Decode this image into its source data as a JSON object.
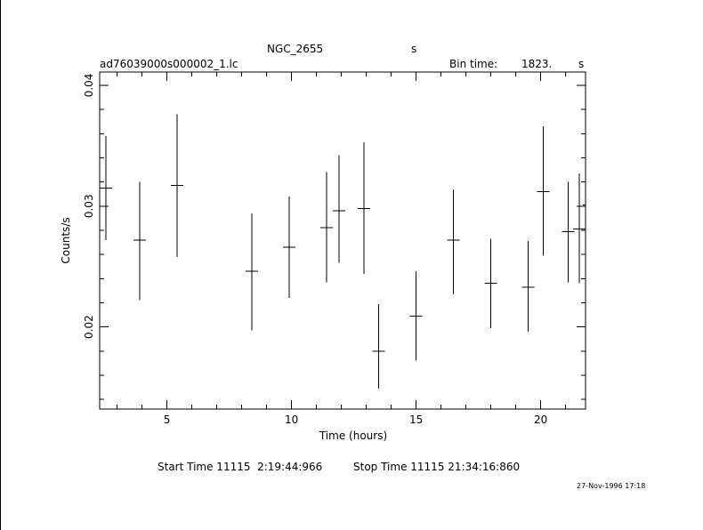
{
  "header": {
    "object": "NGC_2655",
    "object_unit": "s",
    "filename": "ad76039000s000002_1.lc",
    "bin_label": "Bin time:",
    "bin_value": "1823.",
    "bin_unit": "s"
  },
  "footer": {
    "start_label": "Start Time 11115  2:19:44:966",
    "stop_label": "Stop Time 11115 21:34:16:860",
    "date": "27-Nov-1996 17:18"
  },
  "chart_data": {
    "type": "scatter",
    "title": "NGC_2655",
    "xlabel": "Time (hours)",
    "ylabel": "Counts/s",
    "xlim": [
      2.3,
      21.8
    ],
    "ylim": [
      0.0132,
      0.0411
    ],
    "xticks": [
      5,
      10,
      15,
      20
    ],
    "xtick_labels": [
      "5",
      "10",
      "15",
      "20"
    ],
    "yticks": [
      0.02,
      0.03,
      0.04
    ],
    "ytick_labels": [
      "0.02",
      "0.03",
      "0.04"
    ],
    "grid": false,
    "points": [
      {
        "x": 2.55,
        "y": 0.0315,
        "xerr": 0.25,
        "ylo": 0.0272,
        "yhi": 0.0358
      },
      {
        "x": 3.9,
        "y": 0.0272,
        "xerr": 0.25,
        "ylo": 0.0222,
        "yhi": 0.032
      },
      {
        "x": 5.4,
        "y": 0.0317,
        "xerr": 0.25,
        "ylo": 0.0258,
        "yhi": 0.0376
      },
      {
        "x": 8.4,
        "y": 0.0246,
        "xerr": 0.25,
        "ylo": 0.0197,
        "yhi": 0.0294
      },
      {
        "x": 9.9,
        "y": 0.0266,
        "xerr": 0.25,
        "ylo": 0.0224,
        "yhi": 0.0308
      },
      {
        "x": 11.4,
        "y": 0.0282,
        "xerr": 0.25,
        "ylo": 0.0237,
        "yhi": 0.0328
      },
      {
        "x": 11.9,
        "y": 0.0296,
        "xerr": 0.25,
        "ylo": 0.0253,
        "yhi": 0.0342
      },
      {
        "x": 12.9,
        "y": 0.0298,
        "xerr": 0.25,
        "ylo": 0.0244,
        "yhi": 0.0353
      },
      {
        "x": 13.5,
        "y": 0.018,
        "xerr": 0.25,
        "ylo": 0.0149,
        "yhi": 0.0219
      },
      {
        "x": 15.0,
        "y": 0.0209,
        "xerr": 0.25,
        "ylo": 0.0172,
        "yhi": 0.0246
      },
      {
        "x": 16.5,
        "y": 0.0272,
        "xerr": 0.25,
        "ylo": 0.0227,
        "yhi": 0.0314
      },
      {
        "x": 18.0,
        "y": 0.0236,
        "xerr": 0.25,
        "ylo": 0.0199,
        "yhi": 0.0273
      },
      {
        "x": 19.5,
        "y": 0.0233,
        "xerr": 0.25,
        "ylo": 0.0196,
        "yhi": 0.0271
      },
      {
        "x": 20.1,
        "y": 0.0312,
        "xerr": 0.25,
        "ylo": 0.0259,
        "yhi": 0.0366
      },
      {
        "x": 21.1,
        "y": 0.0279,
        "xerr": 0.25,
        "ylo": 0.0237,
        "yhi": 0.032
      },
      {
        "x": 21.55,
        "y": 0.0281,
        "xerr": 0.25,
        "ylo": 0.0236,
        "yhi": 0.0327
      },
      {
        "x": 21.8,
        "y": 0.0301,
        "xerr": 0.1,
        "ylo": 0.025,
        "yhi": 0.0345
      }
    ]
  }
}
